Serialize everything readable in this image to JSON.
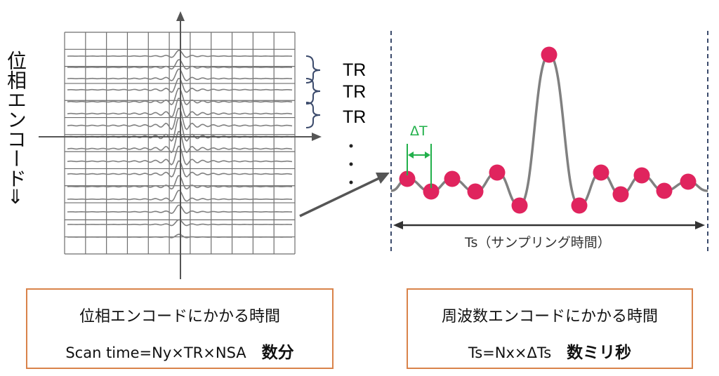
{
  "phase_axis_label": "位相エンコード⇒",
  "tr_labels": [
    "TR",
    "TR",
    "TR"
  ],
  "delta_t_label": "ΔT",
  "ts_label": "Ts（サンプリング時間）",
  "left_box": {
    "title": "位相エンコードにかかる時間",
    "formula": "Scan time=Ny×TR×NSA",
    "duration": "数分"
  },
  "right_box": {
    "title": "周波数エンコードにかかる時間",
    "formula": "Ts=Nx×ΔTs",
    "duration": "数ミリ秒"
  },
  "colors": {
    "grid": "#6e6e6e",
    "signal": "#808080",
    "sample_point": "#e0245e",
    "delta_t": "#22b04b",
    "box_border": "#d9834a",
    "brace": "#3b4a6b"
  }
}
